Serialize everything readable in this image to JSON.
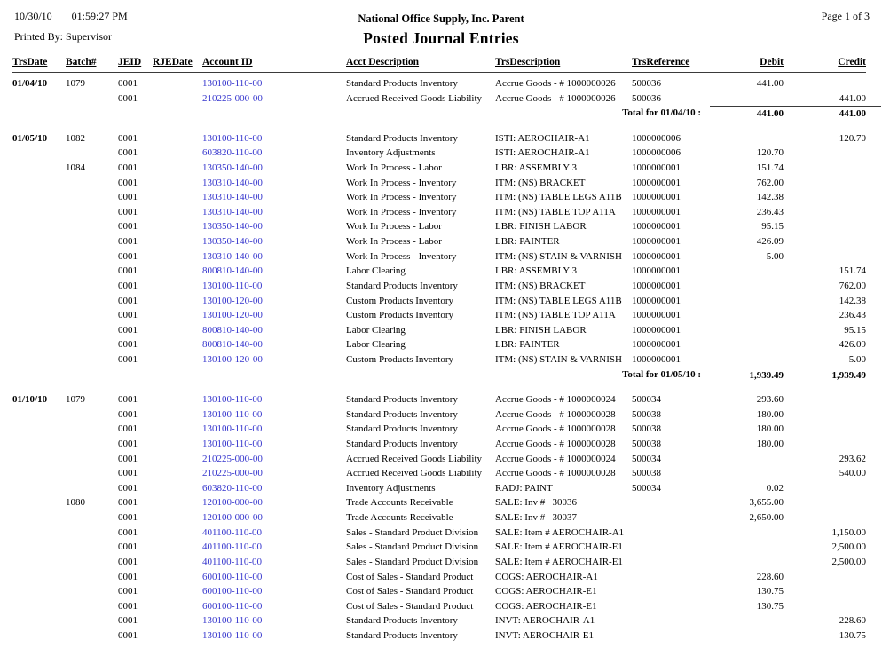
{
  "report": {
    "print_date": "10/30/10",
    "print_time": "01:59:27 PM",
    "printed_by_label": "Printed By:",
    "printed_by": "Supervisor",
    "company": "National Office Supply, Inc. Parent",
    "title": "Posted Journal Entries",
    "page_label": "Page 1 of 3"
  },
  "table": {
    "columns": [
      "TrsDate",
      "Batch#",
      "JEID",
      "RJEDate",
      "Account ID",
      "Acct Description",
      "TrsDescription",
      "TrsReference",
      "Debit",
      "Credit"
    ],
    "link_color": "#3535cd",
    "sections": [
      {
        "rows": [
          {
            "date": "01/04/10",
            "batch": "1079",
            "jeid": "0001",
            "rjedate": "",
            "account": "130100-110-00",
            "acct_desc": "Standard Products Inventory",
            "trs_desc": "Accrue Goods - # 1000000026",
            "trs_ref": "500036",
            "debit": "441.00",
            "credit": ""
          },
          {
            "date": "",
            "batch": "",
            "jeid": "0001",
            "rjedate": "",
            "account": "210225-000-00",
            "acct_desc": "Accrued Received Goods Liability",
            "trs_desc": "Accrue Goods - # 1000000026",
            "trs_ref": "500036",
            "debit": "",
            "credit": "441.00"
          }
        ],
        "total": {
          "label": "Total for 01/04/10 :",
          "debit": "441.00",
          "credit": "441.00"
        }
      },
      {
        "rows": [
          {
            "date": "01/05/10",
            "batch": "1082",
            "jeid": "0001",
            "rjedate": "",
            "account": "130100-110-00",
            "acct_desc": "Standard Products Inventory",
            "trs_desc": "ISTI: AEROCHAIR-A1",
            "trs_ref": "1000000006",
            "debit": "",
            "credit": "120.70"
          },
          {
            "date": "",
            "batch": "",
            "jeid": "0001",
            "rjedate": "",
            "account": "603820-110-00",
            "acct_desc": "Inventory Adjustments",
            "trs_desc": "ISTI: AEROCHAIR-A1",
            "trs_ref": "1000000006",
            "debit": "120.70",
            "credit": ""
          },
          {
            "date": "",
            "batch": "1084",
            "jeid": "0001",
            "rjedate": "",
            "account": "130350-140-00",
            "acct_desc": "Work In Process - Labor",
            "trs_desc": "LBR: ASSEMBLY 3",
            "trs_ref": "1000000001",
            "debit": "151.74",
            "credit": ""
          },
          {
            "date": "",
            "batch": "",
            "jeid": "0001",
            "rjedate": "",
            "account": "130310-140-00",
            "acct_desc": "Work In Process - Inventory",
            "trs_desc": "ITM: (NS) BRACKET",
            "trs_ref": "1000000001",
            "debit": "762.00",
            "credit": ""
          },
          {
            "date": "",
            "batch": "",
            "jeid": "0001",
            "rjedate": "",
            "account": "130310-140-00",
            "acct_desc": "Work In Process - Inventory",
            "trs_desc": "ITM: (NS) TABLE LEGS A11B",
            "trs_ref": "1000000001",
            "debit": "142.38",
            "credit": ""
          },
          {
            "date": "",
            "batch": "",
            "jeid": "0001",
            "rjedate": "",
            "account": "130310-140-00",
            "acct_desc": "Work In Process - Inventory",
            "trs_desc": "ITM: (NS) TABLE TOP A11A",
            "trs_ref": "1000000001",
            "debit": "236.43",
            "credit": ""
          },
          {
            "date": "",
            "batch": "",
            "jeid": "0001",
            "rjedate": "",
            "account": "130350-140-00",
            "acct_desc": "Work In Process - Labor",
            "trs_desc": "LBR: FINISH LABOR",
            "trs_ref": "1000000001",
            "debit": "95.15",
            "credit": ""
          },
          {
            "date": "",
            "batch": "",
            "jeid": "0001",
            "rjedate": "",
            "account": "130350-140-00",
            "acct_desc": "Work In Process - Labor",
            "trs_desc": "LBR: PAINTER",
            "trs_ref": "1000000001",
            "debit": "426.09",
            "credit": ""
          },
          {
            "date": "",
            "batch": "",
            "jeid": "0001",
            "rjedate": "",
            "account": "130310-140-00",
            "acct_desc": "Work In Process - Inventory",
            "trs_desc": "ITM: (NS) STAIN & VARNISH",
            "trs_ref": "1000000001",
            "debit": "5.00",
            "credit": ""
          },
          {
            "date": "",
            "batch": "",
            "jeid": "0001",
            "rjedate": "",
            "account": "800810-140-00",
            "acct_desc": "Labor Clearing",
            "trs_desc": "LBR: ASSEMBLY 3",
            "trs_ref": "1000000001",
            "debit": "",
            "credit": "151.74"
          },
          {
            "date": "",
            "batch": "",
            "jeid": "0001",
            "rjedate": "",
            "account": "130100-110-00",
            "acct_desc": "Standard Products Inventory",
            "trs_desc": "ITM: (NS) BRACKET",
            "trs_ref": "1000000001",
            "debit": "",
            "credit": "762.00"
          },
          {
            "date": "",
            "batch": "",
            "jeid": "0001",
            "rjedate": "",
            "account": "130100-120-00",
            "acct_desc": "Custom Products Inventory",
            "trs_desc": "ITM: (NS) TABLE LEGS A11B",
            "trs_ref": "1000000001",
            "debit": "",
            "credit": "142.38"
          },
          {
            "date": "",
            "batch": "",
            "jeid": "0001",
            "rjedate": "",
            "account": "130100-120-00",
            "acct_desc": "Custom Products Inventory",
            "trs_desc": "ITM: (NS) TABLE TOP A11A",
            "trs_ref": "1000000001",
            "debit": "",
            "credit": "236.43"
          },
          {
            "date": "",
            "batch": "",
            "jeid": "0001",
            "rjedate": "",
            "account": "800810-140-00",
            "acct_desc": "Labor Clearing",
            "trs_desc": "LBR: FINISH LABOR",
            "trs_ref": "1000000001",
            "debit": "",
            "credit": "95.15"
          },
          {
            "date": "",
            "batch": "",
            "jeid": "0001",
            "rjedate": "",
            "account": "800810-140-00",
            "acct_desc": "Labor Clearing",
            "trs_desc": "LBR: PAINTER",
            "trs_ref": "1000000001",
            "debit": "",
            "credit": "426.09"
          },
          {
            "date": "",
            "batch": "",
            "jeid": "0001",
            "rjedate": "",
            "account": "130100-120-00",
            "acct_desc": "Custom Products Inventory",
            "trs_desc": "ITM: (NS) STAIN & VARNISH",
            "trs_ref": "1000000001",
            "debit": "",
            "credit": "5.00"
          }
        ],
        "total": {
          "label": "Total for 01/05/10 :",
          "debit": "1,939.49",
          "credit": "1,939.49"
        }
      },
      {
        "rows": [
          {
            "date": "01/10/10",
            "batch": "1079",
            "jeid": "0001",
            "rjedate": "",
            "account": "130100-110-00",
            "acct_desc": "Standard Products Inventory",
            "trs_desc": "Accrue Goods - # 1000000024",
            "trs_ref": "500034",
            "debit": "293.60",
            "credit": ""
          },
          {
            "date": "",
            "batch": "",
            "jeid": "0001",
            "rjedate": "",
            "account": "130100-110-00",
            "acct_desc": "Standard Products Inventory",
            "trs_desc": "Accrue Goods - # 1000000028",
            "trs_ref": "500038",
            "debit": "180.00",
            "credit": ""
          },
          {
            "date": "",
            "batch": "",
            "jeid": "0001",
            "rjedate": "",
            "account": "130100-110-00",
            "acct_desc": "Standard Products Inventory",
            "trs_desc": "Accrue Goods - # 1000000028",
            "trs_ref": "500038",
            "debit": "180.00",
            "credit": ""
          },
          {
            "date": "",
            "batch": "",
            "jeid": "0001",
            "rjedate": "",
            "account": "130100-110-00",
            "acct_desc": "Standard Products Inventory",
            "trs_desc": "Accrue Goods - # 1000000028",
            "trs_ref": "500038",
            "debit": "180.00",
            "credit": ""
          },
          {
            "date": "",
            "batch": "",
            "jeid": "0001",
            "rjedate": "",
            "account": "210225-000-00",
            "acct_desc": "Accrued Received Goods Liability",
            "trs_desc": "Accrue Goods - # 1000000024",
            "trs_ref": "500034",
            "debit": "",
            "credit": "293.62"
          },
          {
            "date": "",
            "batch": "",
            "jeid": "0001",
            "rjedate": "",
            "account": "210225-000-00",
            "acct_desc": "Accrued Received Goods Liability",
            "trs_desc": "Accrue Goods - # 1000000028",
            "trs_ref": "500038",
            "debit": "",
            "credit": "540.00"
          },
          {
            "date": "",
            "batch": "",
            "jeid": "0001",
            "rjedate": "",
            "account": "603820-110-00",
            "acct_desc": "Inventory Adjustments",
            "trs_desc": "RADJ: PAINT",
            "trs_ref": "500034",
            "debit": "0.02",
            "credit": ""
          },
          {
            "date": "",
            "batch": "1080",
            "jeid": "0001",
            "rjedate": "",
            "account": "120100-000-00",
            "acct_desc": "Trade Accounts Receivable",
            "trs_desc": "SALE: Inv #   30036",
            "trs_ref": "",
            "debit": "3,655.00",
            "credit": ""
          },
          {
            "date": "",
            "batch": "",
            "jeid": "0001",
            "rjedate": "",
            "account": "120100-000-00",
            "acct_desc": "Trade Accounts Receivable",
            "trs_desc": "SALE: Inv #   30037",
            "trs_ref": "",
            "debit": "2,650.00",
            "credit": ""
          },
          {
            "date": "",
            "batch": "",
            "jeid": "0001",
            "rjedate": "",
            "account": "401100-110-00",
            "acct_desc": "Sales - Standard Product Division",
            "trs_desc": "SALE: Item # AEROCHAIR-A1",
            "trs_ref": "",
            "debit": "",
            "credit": "1,150.00"
          },
          {
            "date": "",
            "batch": "",
            "jeid": "0001",
            "rjedate": "",
            "account": "401100-110-00",
            "acct_desc": "Sales - Standard Product Division",
            "trs_desc": "SALE: Item # AEROCHAIR-E1",
            "trs_ref": "",
            "debit": "",
            "credit": "2,500.00"
          },
          {
            "date": "",
            "batch": "",
            "jeid": "0001",
            "rjedate": "",
            "account": "401100-110-00",
            "acct_desc": "Sales - Standard Product Division",
            "trs_desc": "SALE: Item # AEROCHAIR-E1",
            "trs_ref": "",
            "debit": "",
            "credit": "2,500.00"
          },
          {
            "date": "",
            "batch": "",
            "jeid": "0001",
            "rjedate": "",
            "account": "600100-110-00",
            "acct_desc": "Cost of Sales - Standard Product",
            "trs_desc": "COGS: AEROCHAIR-A1",
            "trs_ref": "",
            "debit": "228.60",
            "credit": ""
          },
          {
            "date": "",
            "batch": "",
            "jeid": "0001",
            "rjedate": "",
            "account": "600100-110-00",
            "acct_desc": "Cost of Sales - Standard Product",
            "trs_desc": "COGS: AEROCHAIR-E1",
            "trs_ref": "",
            "debit": "130.75",
            "credit": ""
          },
          {
            "date": "",
            "batch": "",
            "jeid": "0001",
            "rjedate": "",
            "account": "600100-110-00",
            "acct_desc": "Cost of Sales - Standard Product",
            "trs_desc": "COGS: AEROCHAIR-E1",
            "trs_ref": "",
            "debit": "130.75",
            "credit": ""
          },
          {
            "date": "",
            "batch": "",
            "jeid": "0001",
            "rjedate": "",
            "account": "130100-110-00",
            "acct_desc": "Standard Products Inventory",
            "trs_desc": "INVT: AEROCHAIR-A1",
            "trs_ref": "",
            "debit": "",
            "credit": "228.60"
          },
          {
            "date": "",
            "batch": "",
            "jeid": "0001",
            "rjedate": "",
            "account": "130100-110-00",
            "acct_desc": "Standard Products Inventory",
            "trs_desc": "INVT: AEROCHAIR-E1",
            "trs_ref": "",
            "debit": "",
            "credit": "130.75"
          }
        ],
        "total": null
      }
    ]
  }
}
